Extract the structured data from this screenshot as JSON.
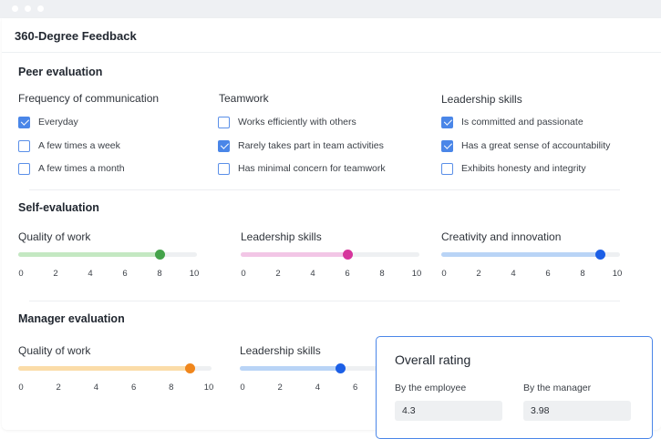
{
  "window": {
    "title": "360-Degree Feedback"
  },
  "peer": {
    "title": "Peer evaluation",
    "groups": [
      {
        "label": "Frequency of communication",
        "options": [
          {
            "label": "Everyday",
            "checked": true
          },
          {
            "label": "A few times a week",
            "checked": false
          },
          {
            "label": "A few times a month",
            "checked": false
          }
        ]
      },
      {
        "label": "Teamwork",
        "options": [
          {
            "label": "Works efficiently with others",
            "checked": false
          },
          {
            "label": "Rarely takes part in team activities",
            "checked": true
          },
          {
            "label": "Has minimal concern for teamwork",
            "checked": false
          }
        ]
      },
      {
        "label": "Leadership skills",
        "options": [
          {
            "label": "Is committed and passionate",
            "checked": true
          },
          {
            "label": "Has a great sense of accountability",
            "checked": true
          },
          {
            "label": "Exhibits honesty and integrity",
            "checked": false
          }
        ]
      }
    ]
  },
  "self": {
    "title": "Self-evaluation",
    "sliders": [
      {
        "label": "Quality of work",
        "value": 8,
        "max": 10,
        "color": "#44a34a",
        "fill": "#c4e8c2"
      },
      {
        "label": "Leadership skills",
        "value": 6,
        "max": 10,
        "color": "#d6359c",
        "fill": "#f2c6e6"
      },
      {
        "label": "Creativity and innovation",
        "value": 9,
        "max": 10,
        "color": "#1c5fe6",
        "fill": "#b9d4f6"
      }
    ],
    "ticks": [
      "0",
      "2",
      "4",
      "6",
      "8",
      "10"
    ]
  },
  "manager": {
    "title": "Manager evaluation",
    "sliders": [
      {
        "label": "Quality of work",
        "value": 9,
        "max": 10,
        "color": "#f0861c",
        "fill": "#fbdca8"
      },
      {
        "label": "Leadership skills",
        "value": 5.2,
        "max": 10,
        "color": "#1c5fe6",
        "fill": "#b9d4f6"
      }
    ],
    "ticks": [
      "0",
      "2",
      "4",
      "6",
      "8",
      "10"
    ]
  },
  "rating": {
    "title": "Overall rating",
    "employee_label": "By the employee",
    "employee_value": "4.3",
    "manager_label": "By the manager",
    "manager_value": "3.98"
  }
}
